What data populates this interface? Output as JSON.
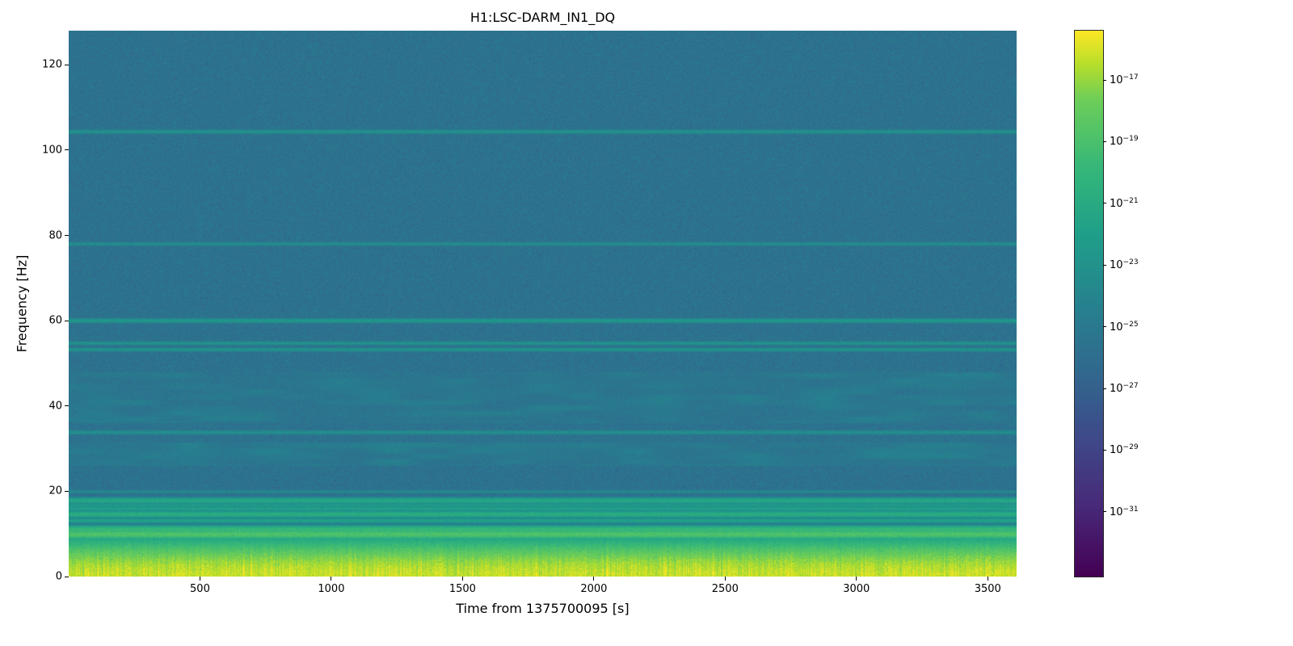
{
  "chart_data": {
    "type": "heatmap",
    "subtype": "spectrogram",
    "title": "H1:LSC-DARM_IN1_DQ",
    "xlabel": "Time from 1375700095 [s]",
    "ylabel": "Frequency [Hz]",
    "x_range": [
      0,
      3610
    ],
    "y_range": [
      0,
      128
    ],
    "x_ticks": [
      500,
      1000,
      1500,
      2000,
      2500,
      3000,
      3500
    ],
    "y_ticks": [
      0,
      20,
      40,
      60,
      80,
      100,
      120
    ],
    "grid": false,
    "colorbar": {
      "scale": "log",
      "position": "right",
      "tick_exponents": [
        -17,
        -19,
        -21,
        -23,
        -25,
        -27,
        -29,
        -31
      ],
      "vmax_exponent": -15.4,
      "vmin_exponent": -33.1,
      "colormap": "viridis",
      "colormap_stops": [
        [
          0.0,
          "#440154"
        ],
        [
          0.125,
          "#482878"
        ],
        [
          0.25,
          "#3e4989"
        ],
        [
          0.375,
          "#31688e"
        ],
        [
          0.5,
          "#26828e"
        ],
        [
          0.625,
          "#1f9e89"
        ],
        [
          0.75,
          "#35b779"
        ],
        [
          0.875,
          "#6ece58"
        ],
        [
          0.9375,
          "#b5de2b"
        ],
        [
          1.0,
          "#fde725"
        ]
      ]
    },
    "background_level_exponent": -25.6,
    "noise_sigma_decades": 0.55,
    "low_frequency_band": {
      "f_max": 12,
      "bottom_level_exponent": -16.2,
      "falloff_power": 2.0
    },
    "spectral_lines": [
      {
        "freq": 104.3,
        "level": -23.0,
        "width": 0.45
      },
      {
        "freq": 78.0,
        "level": -23.3,
        "width": 0.4
      },
      {
        "freq": 60.0,
        "level": -22.6,
        "width": 0.5
      },
      {
        "freq": 54.7,
        "level": -22.9,
        "width": 0.4
      },
      {
        "freq": 53.2,
        "level": -23.0,
        "width": 0.45
      },
      {
        "freq": 33.8,
        "level": -23.3,
        "width": 0.5
      },
      {
        "freq": 19.9,
        "level": -23.5,
        "width": 0.35
      },
      {
        "freq": 17.8,
        "level": -21.3,
        "width": 0.6
      },
      {
        "freq": 16.7,
        "level": -22.3,
        "width": 0.4
      },
      {
        "freq": 15.9,
        "level": -21.8,
        "width": 0.45
      },
      {
        "freq": 14.6,
        "level": -20.8,
        "width": 0.6
      },
      {
        "freq": 13.1,
        "level": -21.8,
        "width": 0.5
      },
      {
        "freq": 11.0,
        "level": -19.8,
        "width": 0.7
      },
      {
        "freq": 9.9,
        "level": -18.8,
        "width": 0.8
      }
    ],
    "noise_bands": [
      {
        "f_min": 26.0,
        "f_max": 31.5,
        "level": -25.0
      },
      {
        "f_min": 36.0,
        "f_max": 48.0,
        "level": -25.2
      }
    ]
  },
  "figure": {
    "background_color": "#ffffff",
    "text_color": "#000000"
  }
}
